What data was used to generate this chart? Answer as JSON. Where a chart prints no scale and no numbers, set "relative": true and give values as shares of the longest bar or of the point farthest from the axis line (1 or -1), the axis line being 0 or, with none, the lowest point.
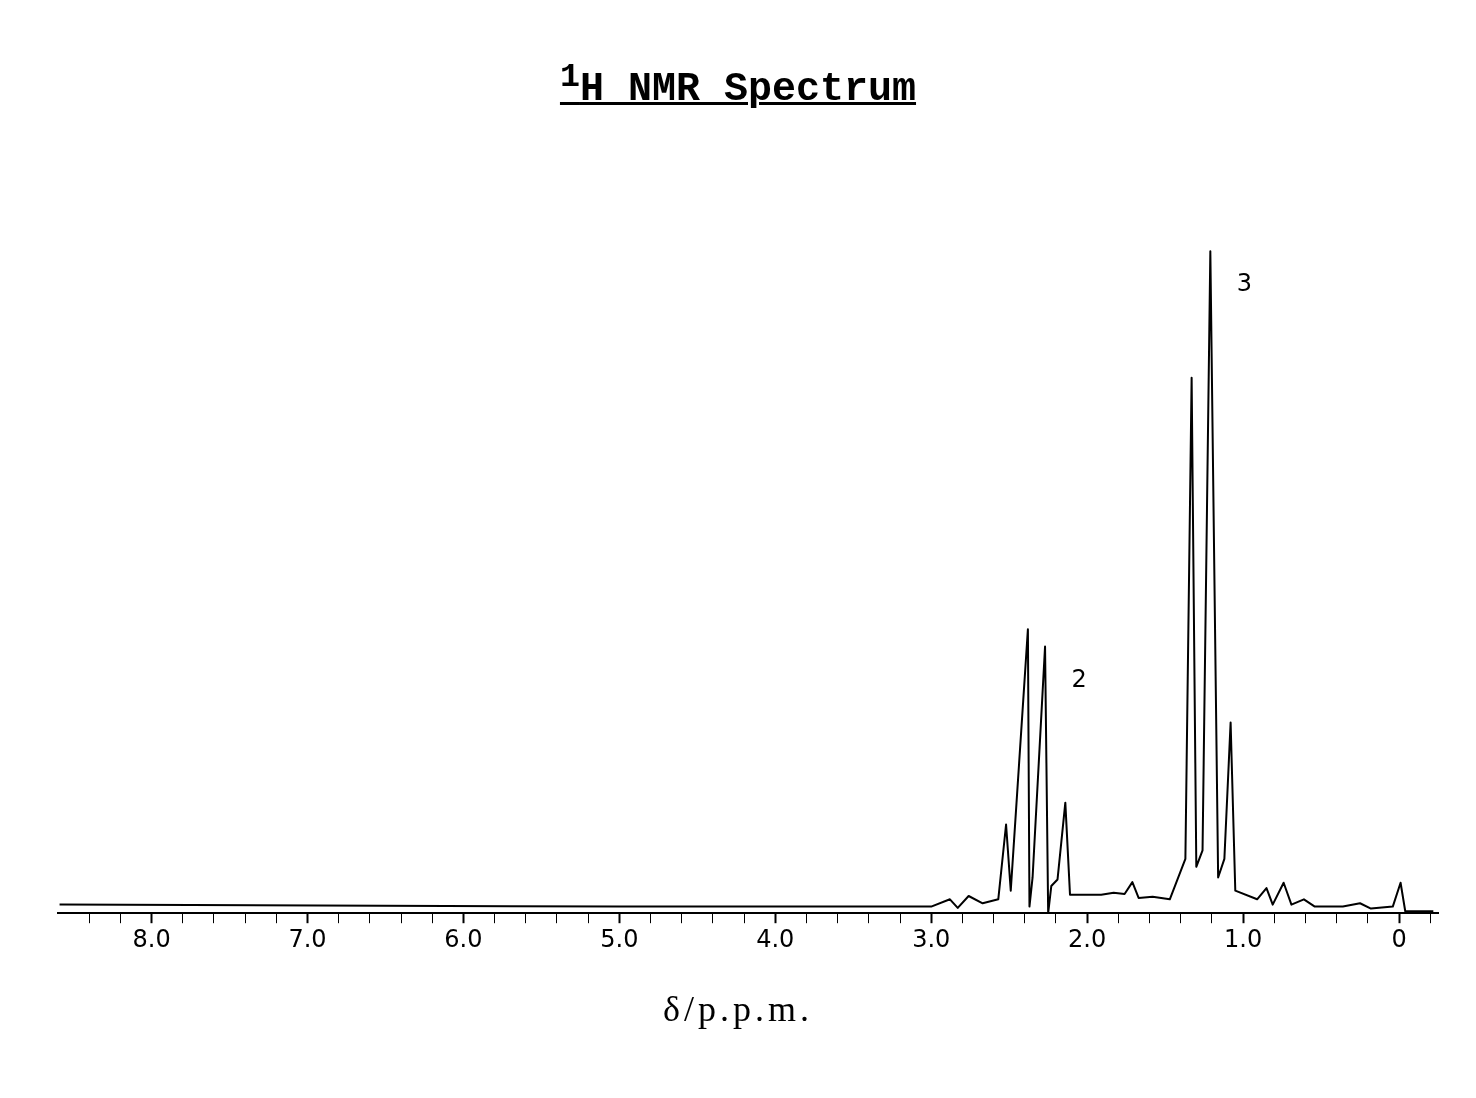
{
  "chart_data": {
    "type": "line",
    "title": "$^{1}$H NMR Spectrum",
    "xlabel": "δ/p.p.m.",
    "relative": true,
    "marker": "none",
    "line_style": "solid",
    "legend": false,
    "grid": false,
    "tick_labels": "x",
    "xlim": [
      8.6,
      -0.25
    ],
    "xticks": [
      {
        "value": 8,
        "label": "8.0"
      },
      {
        "value": 7,
        "label": "7.0"
      },
      {
        "value": 6,
        "label": "6.0"
      },
      {
        "value": 5,
        "label": "5.0"
      },
      {
        "value": 4,
        "label": "4.0"
      },
      {
        "value": 3,
        "label": "3.0"
      },
      {
        "value": 2,
        "label": "2.0"
      },
      {
        "value": 1,
        "label": "1.0"
      },
      0,
      {
        "value": 8.4,
        "label": null
      },
      {
        "value": 8.2,
        "label": null
      },
      {
        "value": 7.8,
        "label": null
      },
      {
        "value": 7.6,
        "label": null
      },
      {
        "value": 7.4,
        "label": null
      },
      {
        "value": 7.2,
        "label": null
      },
      {
        "value": 6.8,
        "label": null
      },
      {
        "value": 6.6,
        "label": null
      },
      {
        "value": 6.4,
        "label": null
      },
      {
        "value": 6.2,
        "label": null
      },
      {
        "value": 5.8,
        "label": null
      },
      {
        "value": 5.6,
        "label": null
      },
      {
        "value": 5.4,
        "label": null
      },
      {
        "value": 5.2,
        "label": null
      },
      {
        "value": 4.8,
        "label": null
      },
      {
        "value": 4.6,
        "label": null
      },
      {
        "value": 4.4,
        "label": null
      },
      {
        "value": 4.2,
        "label": null
      },
      {
        "value": 3.8,
        "label": null
      },
      {
        "value": 3.6,
        "label": null
      },
      {
        "value": 3.4,
        "label": null
      },
      {
        "value": 3.2,
        "label": null
      },
      {
        "value": 2.8,
        "label": null
      },
      {
        "value": 2.6,
        "label": null
      },
      {
        "value": 2.4,
        "label": null
      },
      {
        "value": 2.2,
        "label": null
      },
      {
        "value": 1.8,
        "label": null
      },
      {
        "value": 1.6,
        "label": null
      },
      {
        "value": 1.4,
        "label": null
      },
      {
        "value": 1.2,
        "label": null
      },
      {
        "value": 0.8,
        "label": null
      },
      {
        "value": 0.6,
        "label": null
      },
      {
        "value": 0.4,
        "label": null
      },
      {
        "value": 0.2,
        "label": null
      },
      {
        "value": -0.2,
        "label": null
      }
    ],
    "annotations": [
      {
        "text": "2",
        "x": 2.27,
        "y": 0.403
      },
      {
        "text": "3",
        "x": 1.21,
        "y": 1.0
      }
    ],
    "series": [
      {
        "color": "#000000",
        "x": [
          8.59,
          5.0,
          3.6,
          3.0,
          2.88,
          2.83,
          2.76,
          2.67,
          2.57,
          2.52,
          2.49,
          2.38,
          2.37,
          2.35,
          2.27,
          2.25,
          2.23,
          2.19,
          2.14,
          2.11,
          1.91,
          1.83,
          1.76,
          1.71,
          1.67,
          1.58,
          1.47,
          1.37,
          1.33,
          1.3,
          1.26,
          1.21,
          1.16,
          1.12,
          1.08,
          1.05,
          0.91,
          0.85,
          0.81,
          0.74,
          0.69,
          0.61,
          0.54,
          0.36,
          0.25,
          0.18,
          0.04,
          -0.01,
          -0.04,
          -0.22
        ],
        "values": [
          0.013,
          0.01,
          0.01,
          0.01,
          0.021,
          0.008,
          0.026,
          0.015,
          0.021,
          0.134,
          0.034,
          0.429,
          0.01,
          0.054,
          0.403,
          0.0,
          0.041,
          0.051,
          0.167,
          0.028,
          0.028,
          0.031,
          0.029,
          0.047,
          0.023,
          0.025,
          0.021,
          0.082,
          0.809,
          0.07,
          0.095,
          1.0,
          0.054,
          0.082,
          0.288,
          0.034,
          0.021,
          0.038,
          0.013,
          0.046,
          0.013,
          0.021,
          0.01,
          0.01,
          0.015,
          0.007,
          0.01,
          0.046,
          0.003,
          0.003
        ]
      }
    ]
  }
}
